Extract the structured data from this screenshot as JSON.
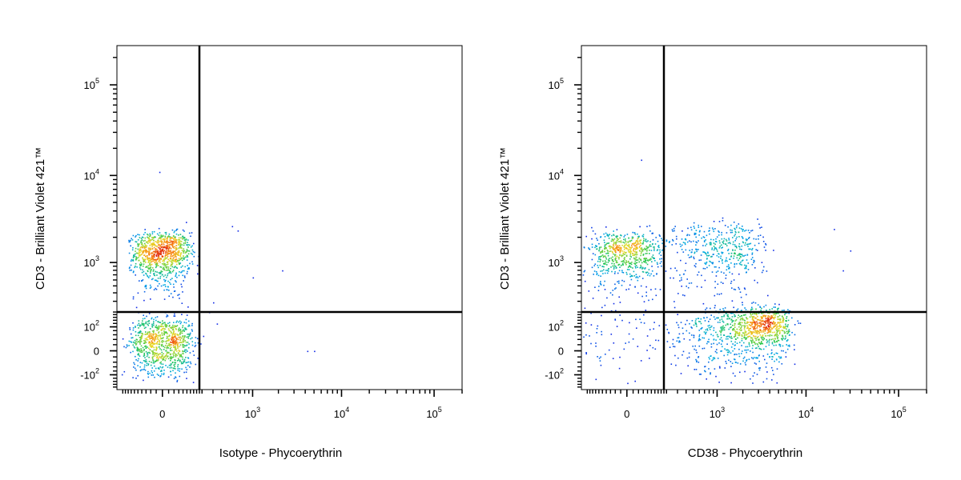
{
  "chart_data": [
    {
      "type": "scatter",
      "style": "density pseudocolor dot plot",
      "xlabel": "Isotype - Phycoerythrin",
      "ylabel": "CD3 - Brilliant Violet 421™",
      "x_scale": "biexponential",
      "y_scale": "biexponential",
      "xlim": [
        -250,
        200000
      ],
      "ylim": [
        -200,
        270000
      ],
      "x_ticks": [
        {
          "value": 0,
          "base": "0",
          "exp": ""
        },
        {
          "value": 1000,
          "base": "10",
          "exp": "3"
        },
        {
          "value": 10000,
          "base": "10",
          "exp": "4"
        },
        {
          "value": 100000,
          "base": "10",
          "exp": "5"
        }
      ],
      "y_ticks": [
        {
          "value": -100,
          "base": "-10",
          "exp": "2"
        },
        {
          "value": 0,
          "base": "0",
          "exp": ""
        },
        {
          "value": 100,
          "base": "10",
          "exp": "2"
        },
        {
          "value": 1000,
          "base": "10",
          "exp": "3"
        },
        {
          "value": 10000,
          "base": "10",
          "exp": "4"
        },
        {
          "value": 100000,
          "base": "10",
          "exp": "5"
        }
      ],
      "gates": {
        "x": 180,
        "y": 200
      },
      "populations": [
        {
          "x": -5,
          "y": 1300,
          "sx": 60,
          "sy": 500,
          "n": 950
        },
        {
          "x": 0,
          "y": 30,
          "sx": 65,
          "sy": 60,
          "n": 850
        }
      ],
      "outliers": [
        {
          "x": 550,
          "y": 2700
        },
        {
          "x": 650,
          "y": 2400
        },
        {
          "x": 1000,
          "y": 650
        },
        {
          "x": 2200,
          "y": 800
        },
        {
          "x": 4200,
          "y": 0
        },
        {
          "x": 5000,
          "y": 0
        },
        {
          "x": 300,
          "y": 290
        },
        {
          "x": 340,
          "y": 120
        },
        {
          "x": 260,
          "y": 200
        },
        {
          "x": -10,
          "y": 11000
        }
      ],
      "grid": false,
      "legend": "none"
    },
    {
      "type": "scatter",
      "style": "density pseudocolor dot plot",
      "xlabel": "CD38 - Phycoerythrin",
      "ylabel": "CD3 - Brilliant Violet 421™",
      "x_scale": "biexponential",
      "y_scale": "biexponential",
      "xlim": [
        -250,
        200000
      ],
      "ylim": [
        -200,
        270000
      ],
      "x_ticks": [
        {
          "value": 0,
          "base": "0",
          "exp": ""
        },
        {
          "value": 1000,
          "base": "10",
          "exp": "3"
        },
        {
          "value": 10000,
          "base": "10",
          "exp": "4"
        },
        {
          "value": 100000,
          "base": "10",
          "exp": "5"
        }
      ],
      "y_ticks": [
        {
          "value": -100,
          "base": "-10",
          "exp": "2"
        },
        {
          "value": 0,
          "base": "0",
          "exp": ""
        },
        {
          "value": 100,
          "base": "10",
          "exp": "2"
        },
        {
          "value": 1000,
          "base": "10",
          "exp": "3"
        },
        {
          "value": 10000,
          "base": "10",
          "exp": "4"
        },
        {
          "value": 100000,
          "base": "10",
          "exp": "5"
        }
      ],
      "gates": {
        "x": 180,
        "y": 200
      },
      "populations": [
        {
          "x": -5,
          "y": 1300,
          "sx": 70,
          "sy": 500,
          "n": 600
        },
        {
          "x": 700,
          "y": 1300,
          "sx": 1200,
          "sy": 700,
          "n": 700
        },
        {
          "x": 3000,
          "y": 100,
          "sx": 1700,
          "sy": 70,
          "n": 850
        },
        {
          "x": 150,
          "y": 30,
          "sx": 1500,
          "sy": 60,
          "n": 400
        }
      ],
      "outliers": [
        {
          "x": 50,
          "y": 15000
        },
        {
          "x": 20000,
          "y": 2500
        },
        {
          "x": 30000,
          "y": 1400
        },
        {
          "x": 25000,
          "y": 800
        }
      ],
      "grid": false,
      "legend": "none"
    }
  ]
}
